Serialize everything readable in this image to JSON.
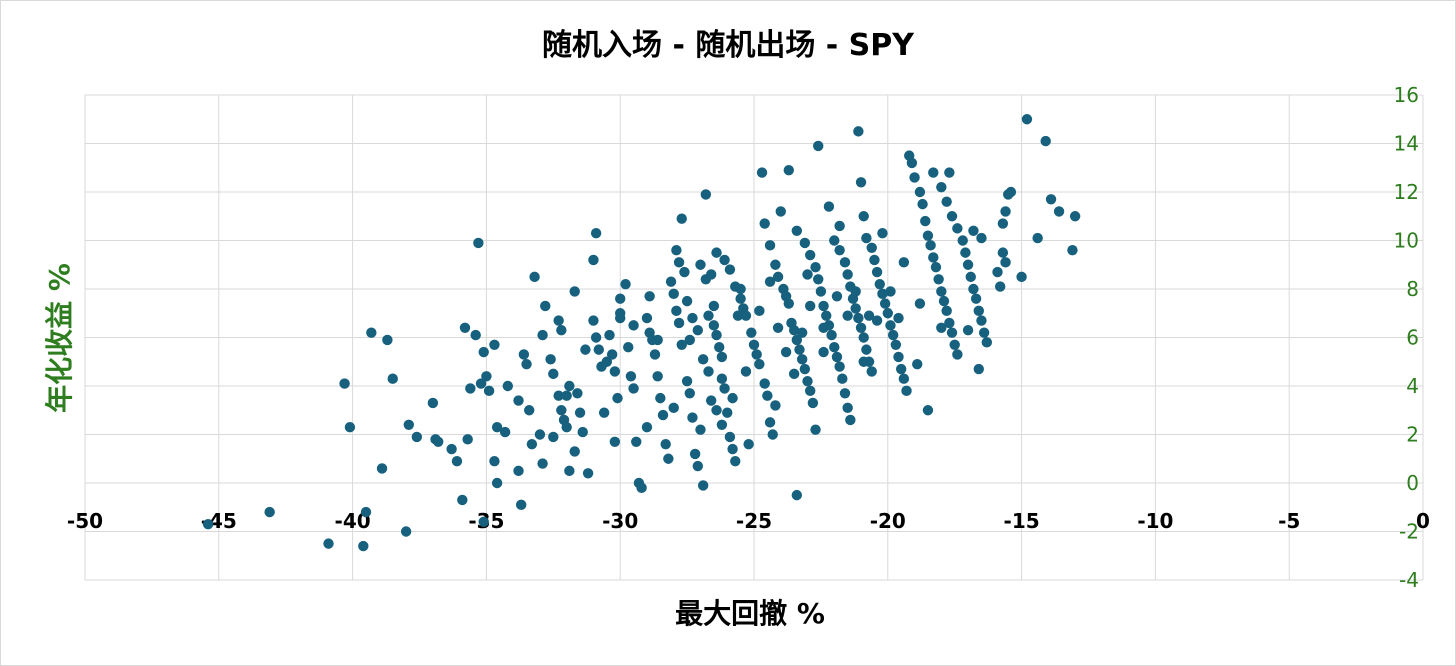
{
  "chart_data": {
    "type": "scatter",
    "title": "随机入场 - 随机出场 - SPY",
    "xlabel": "最大回撤 %",
    "ylabel": "年化收益 %",
    "xlim": [
      -50,
      0
    ],
    "ylim": [
      -4,
      16
    ],
    "x_ticks": [
      "-50",
      "-45",
      "-40",
      "-35",
      "-30",
      "-25",
      "-20",
      "-15",
      "-10",
      "-5",
      "0"
    ],
    "y_ticks": [
      "-4",
      "-2",
      "0",
      "2",
      "4",
      "6",
      "8",
      "10",
      "12",
      "14",
      "16"
    ],
    "grid": true,
    "legend": "none",
    "marker_color": "#17607e",
    "series": [
      {
        "points": [
          [
            -45.4,
            -1.7
          ],
          [
            -43.1,
            -1.2
          ],
          [
            -40.9,
            -2.5
          ],
          [
            -39.6,
            -2.6
          ],
          [
            -39.5,
            -1.2
          ],
          [
            -38.0,
            -2.0
          ],
          [
            -40.3,
            4.1
          ],
          [
            -40.1,
            2.3
          ],
          [
            -39.3,
            6.2
          ],
          [
            -38.7,
            5.9
          ],
          [
            -38.5,
            4.3
          ],
          [
            -38.9,
            0.6
          ],
          [
            -37.9,
            2.4
          ],
          [
            -37.6,
            1.9
          ],
          [
            -37.0,
            3.3
          ],
          [
            -36.9,
            1.8
          ],
          [
            -36.3,
            1.4
          ],
          [
            -36.1,
            0.9
          ],
          [
            -35.9,
            -0.7
          ],
          [
            -35.8,
            6.4
          ],
          [
            -35.6,
            3.9
          ],
          [
            -35.7,
            1.8
          ],
          [
            -35.3,
            9.9
          ],
          [
            -35.4,
            6.1
          ],
          [
            -35.2,
            4.1
          ],
          [
            -35.1,
            5.4
          ],
          [
            -34.9,
            3.8
          ],
          [
            -34.7,
            5.7
          ],
          [
            -34.6,
            2.3
          ],
          [
            -34.7,
            0.9
          ],
          [
            -34.6,
            0.0
          ],
          [
            -35.1,
            -1.6
          ],
          [
            -34.2,
            4.0
          ],
          [
            -33.8,
            3.4
          ],
          [
            -33.8,
            0.5
          ],
          [
            -33.7,
            -0.9
          ],
          [
            -33.6,
            5.3
          ],
          [
            -33.5,
            4.9
          ],
          [
            -33.2,
            8.5
          ],
          [
            -33.3,
            1.6
          ],
          [
            -32.8,
            7.3
          ],
          [
            -32.9,
            6.1
          ],
          [
            -32.9,
            0.8
          ],
          [
            -32.5,
            4.5
          ],
          [
            -32.5,
            1.9
          ],
          [
            -32.3,
            6.7
          ],
          [
            -32.2,
            6.3
          ],
          [
            -32.3,
            3.6
          ],
          [
            -32.2,
            3.0
          ],
          [
            -32.1,
            2.6
          ],
          [
            -32.0,
            2.3
          ],
          [
            -31.9,
            4.0
          ],
          [
            -31.9,
            0.5
          ],
          [
            -31.7,
            7.9
          ],
          [
            -31.6,
            3.7
          ],
          [
            -31.5,
            2.9
          ],
          [
            -31.4,
            2.1
          ],
          [
            -31.2,
            0.4
          ],
          [
            -31.0,
            9.2
          ],
          [
            -30.9,
            10.3
          ],
          [
            -30.9,
            6.0
          ],
          [
            -30.8,
            5.5
          ],
          [
            -30.7,
            4.8
          ],
          [
            -30.6,
            2.9
          ],
          [
            -30.4,
            6.1
          ],
          [
            -30.3,
            5.3
          ],
          [
            -30.2,
            4.6
          ],
          [
            -30.1,
            3.5
          ],
          [
            -30.0,
            7.0
          ],
          [
            -30.0,
            6.8
          ],
          [
            -29.8,
            8.2
          ],
          [
            -29.7,
            5.6
          ],
          [
            -29.6,
            4.4
          ],
          [
            -29.5,
            3.9
          ],
          [
            -29.4,
            1.7
          ],
          [
            -29.3,
            0.0
          ],
          [
            -29.2,
            -0.2
          ],
          [
            -29.0,
            6.8
          ],
          [
            -28.9,
            6.2
          ],
          [
            -28.8,
            5.9
          ],
          [
            -28.7,
            5.3
          ],
          [
            -28.6,
            4.4
          ],
          [
            -28.5,
            3.5
          ],
          [
            -28.4,
            2.8
          ],
          [
            -28.3,
            1.6
          ],
          [
            -28.2,
            1.0
          ],
          [
            -28.1,
            8.3
          ],
          [
            -28.0,
            7.8
          ],
          [
            -27.9,
            7.1
          ],
          [
            -27.8,
            6.6
          ],
          [
            -27.7,
            5.7
          ],
          [
            -27.5,
            4.2
          ],
          [
            -27.4,
            3.7
          ],
          [
            -27.3,
            2.7
          ],
          [
            -27.2,
            1.2
          ],
          [
            -27.1,
            0.7
          ],
          [
            -27.0,
            9.0
          ],
          [
            -26.8,
            8.4
          ],
          [
            -26.7,
            6.9
          ],
          [
            -26.5,
            6.5
          ],
          [
            -26.4,
            6.1
          ],
          [
            -26.3,
            5.6
          ],
          [
            -26.2,
            4.3
          ],
          [
            -26.1,
            3.9
          ],
          [
            -26.0,
            2.9
          ],
          [
            -25.9,
            1.9
          ],
          [
            -25.8,
            1.4
          ],
          [
            -25.7,
            0.9
          ],
          [
            -27.7,
            10.9
          ],
          [
            -27.9,
            9.6
          ],
          [
            -27.6,
            8.7
          ],
          [
            -27.5,
            7.5
          ],
          [
            -27.3,
            6.8
          ],
          [
            -27.1,
            6.3
          ],
          [
            -26.9,
            5.1
          ],
          [
            -26.7,
            4.6
          ],
          [
            -26.6,
            3.4
          ],
          [
            -26.4,
            3.0
          ],
          [
            -26.2,
            2.4
          ],
          [
            -26.9,
            -0.1
          ],
          [
            -26.8,
            11.9
          ],
          [
            -26.4,
            9.5
          ],
          [
            -26.1,
            9.2
          ],
          [
            -25.9,
            8.8
          ],
          [
            -25.7,
            8.1
          ],
          [
            -25.5,
            7.6
          ],
          [
            -25.4,
            7.2
          ],
          [
            -25.3,
            6.9
          ],
          [
            -25.1,
            6.2
          ],
          [
            -25.0,
            5.7
          ],
          [
            -24.9,
            5.3
          ],
          [
            -24.8,
            4.9
          ],
          [
            -24.6,
            4.1
          ],
          [
            -24.5,
            3.6
          ],
          [
            -24.4,
            2.5
          ],
          [
            -24.3,
            2.0
          ],
          [
            -25.2,
            1.6
          ],
          [
            -24.7,
            12.8
          ],
          [
            -24.6,
            10.7
          ],
          [
            -24.4,
            9.8
          ],
          [
            -24.2,
            9.0
          ],
          [
            -24.1,
            8.5
          ],
          [
            -23.9,
            8.0
          ],
          [
            -23.8,
            7.7
          ],
          [
            -23.7,
            7.4
          ],
          [
            -23.6,
            6.6
          ],
          [
            -23.5,
            6.3
          ],
          [
            -23.4,
            5.9
          ],
          [
            -23.3,
            5.5
          ],
          [
            -23.2,
            5.1
          ],
          [
            -23.1,
            4.7
          ],
          [
            -23.0,
            4.2
          ],
          [
            -22.9,
            3.8
          ],
          [
            -22.8,
            3.3
          ],
          [
            -22.7,
            2.2
          ],
          [
            -23.4,
            -0.5
          ],
          [
            -24.0,
            11.2
          ],
          [
            -23.7,
            12.9
          ],
          [
            -23.4,
            10.4
          ],
          [
            -23.1,
            9.9
          ],
          [
            -22.9,
            9.4
          ],
          [
            -22.7,
            8.9
          ],
          [
            -22.6,
            8.4
          ],
          [
            -22.5,
            7.9
          ],
          [
            -22.4,
            7.3
          ],
          [
            -22.3,
            6.9
          ],
          [
            -22.2,
            6.5
          ],
          [
            -22.1,
            6.1
          ],
          [
            -22.0,
            5.6
          ],
          [
            -21.9,
            5.2
          ],
          [
            -21.8,
            4.8
          ],
          [
            -21.7,
            4.3
          ],
          [
            -21.6,
            3.7
          ],
          [
            -21.5,
            3.1
          ],
          [
            -21.4,
            2.6
          ],
          [
            -22.6,
            13.9
          ],
          [
            -22.2,
            11.4
          ],
          [
            -22.0,
            10.0
          ],
          [
            -21.8,
            9.6
          ],
          [
            -21.6,
            9.1
          ],
          [
            -21.5,
            8.6
          ],
          [
            -21.4,
            8.1
          ],
          [
            -21.3,
            7.6
          ],
          [
            -21.2,
            7.2
          ],
          [
            -21.1,
            6.8
          ],
          [
            -21.0,
            6.4
          ],
          [
            -20.9,
            6.0
          ],
          [
            -20.8,
            5.5
          ],
          [
            -20.7,
            5.0
          ],
          [
            -20.6,
            4.6
          ],
          [
            -21.1,
            14.5
          ],
          [
            -21.0,
            12.4
          ],
          [
            -20.9,
            11.0
          ],
          [
            -20.8,
            10.1
          ],
          [
            -20.6,
            9.7
          ],
          [
            -20.5,
            9.2
          ],
          [
            -20.4,
            8.7
          ],
          [
            -20.3,
            8.2
          ],
          [
            -20.2,
            7.8
          ],
          [
            -20.1,
            7.4
          ],
          [
            -20.0,
            7.0
          ],
          [
            -19.9,
            6.5
          ],
          [
            -19.8,
            6.1
          ],
          [
            -19.7,
            5.7
          ],
          [
            -19.6,
            5.2
          ],
          [
            -19.5,
            4.7
          ],
          [
            -19.4,
            4.3
          ],
          [
            -19.3,
            3.8
          ],
          [
            -19.2,
            13.5
          ],
          [
            -19.1,
            13.2
          ],
          [
            -19.0,
            12.6
          ],
          [
            -18.8,
            12.0
          ],
          [
            -18.7,
            11.5
          ],
          [
            -18.6,
            10.8
          ],
          [
            -18.5,
            10.2
          ],
          [
            -18.4,
            9.8
          ],
          [
            -18.3,
            9.3
          ],
          [
            -18.2,
            8.9
          ],
          [
            -18.1,
            8.4
          ],
          [
            -18.0,
            7.9
          ],
          [
            -17.9,
            7.5
          ],
          [
            -17.8,
            7.1
          ],
          [
            -17.7,
            6.6
          ],
          [
            -17.6,
            6.2
          ],
          [
            -17.5,
            5.7
          ],
          [
            -17.4,
            5.3
          ],
          [
            -18.5,
            3.0
          ],
          [
            -18.9,
            4.9
          ],
          [
            -18.3,
            12.8
          ],
          [
            -18.0,
            12.2
          ],
          [
            -17.8,
            11.6
          ],
          [
            -17.6,
            11.0
          ],
          [
            -17.4,
            10.5
          ],
          [
            -17.2,
            10.0
          ],
          [
            -17.1,
            9.5
          ],
          [
            -17.0,
            9.0
          ],
          [
            -16.9,
            8.5
          ],
          [
            -16.8,
            8.0
          ],
          [
            -16.7,
            7.6
          ],
          [
            -16.6,
            7.1
          ],
          [
            -16.5,
            6.7
          ],
          [
            -16.4,
            6.2
          ],
          [
            -16.6,
            4.7
          ],
          [
            -17.0,
            6.3
          ],
          [
            -16.3,
            5.8
          ],
          [
            -17.7,
            12.8
          ],
          [
            -16.8,
            10.4
          ],
          [
            -16.5,
            10.1
          ],
          [
            -15.9,
            8.7
          ],
          [
            -15.7,
            9.5
          ],
          [
            -15.6,
            9.1
          ],
          [
            -15.6,
            11.2
          ],
          [
            -15.5,
            11.9
          ],
          [
            -15.7,
            10.7
          ],
          [
            -15.4,
            12.0
          ],
          [
            -15.0,
            8.5
          ],
          [
            -14.8,
            15.0
          ],
          [
            -14.4,
            10.1
          ],
          [
            -14.1,
            14.1
          ],
          [
            -13.9,
            11.7
          ],
          [
            -13.6,
            11.2
          ],
          [
            -13.0,
            11.0
          ],
          [
            -13.1,
            9.6
          ],
          [
            -15.8,
            8.1
          ],
          [
            -21.2,
            7.9
          ],
          [
            -20.4,
            6.7
          ],
          [
            -19.9,
            7.9
          ],
          [
            -20.7,
            6.9
          ],
          [
            -21.5,
            6.9
          ],
          [
            -22.4,
            6.4
          ],
          [
            -23.2,
            6.2
          ],
          [
            -24.1,
            6.4
          ],
          [
            -24.8,
            7.1
          ],
          [
            -25.6,
            6.9
          ],
          [
            -26.5,
            7.3
          ],
          [
            -27.4,
            5.9
          ],
          [
            -28.6,
            5.9
          ],
          [
            -29.5,
            6.5
          ],
          [
            -30.5,
            5.0
          ],
          [
            -31.3,
            5.5
          ],
          [
            -32.6,
            5.1
          ],
          [
            -33.4,
            3.0
          ],
          [
            -34.3,
            2.1
          ],
          [
            -22.9,
            7.3
          ],
          [
            -21.9,
            7.7
          ],
          [
            -23.8,
            5.4
          ],
          [
            -25.3,
            4.6
          ],
          [
            -26.2,
            5.2
          ],
          [
            -24.2,
            3.2
          ],
          [
            -25.8,
            3.5
          ],
          [
            -27.0,
            2.2
          ],
          [
            -28.0,
            3.1
          ],
          [
            -29.0,
            2.3
          ],
          [
            -30.2,
            1.7
          ],
          [
            -31.7,
            1.3
          ],
          [
            -23.5,
            4.5
          ],
          [
            -22.4,
            5.4
          ],
          [
            -20.9,
            5.0
          ],
          [
            -19.6,
            6.8
          ],
          [
            -18.8,
            7.4
          ],
          [
            -18.0,
            6.4
          ],
          [
            -19.4,
            9.1
          ],
          [
            -20.2,
            10.3
          ],
          [
            -21.8,
            10.6
          ],
          [
            -23.0,
            8.6
          ],
          [
            -24.4,
            8.3
          ],
          [
            -25.5,
            8.0
          ],
          [
            -26.6,
            8.6
          ],
          [
            -27.8,
            9.1
          ],
          [
            -28.9,
            7.7
          ],
          [
            -30.0,
            7.6
          ],
          [
            -31.0,
            6.7
          ],
          [
            -32.0,
            3.6
          ],
          [
            -33.0,
            2.0
          ],
          [
            -35.0,
            4.4
          ],
          [
            -36.8,
            1.7
          ]
        ]
      }
    ]
  }
}
